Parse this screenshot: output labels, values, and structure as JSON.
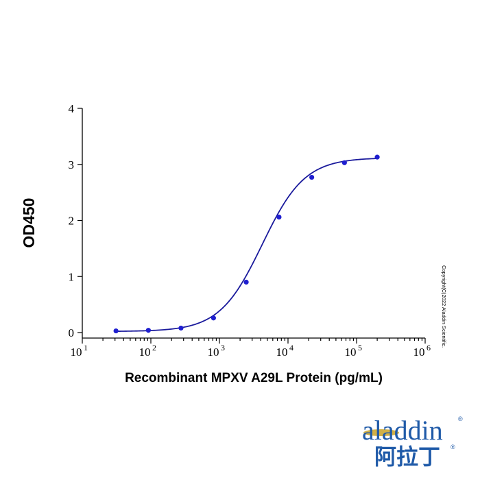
{
  "chart_data": {
    "type": "line",
    "xscale": "log",
    "xlabel": "Recombinant MPXV A29L Protein (pg/mL)",
    "ylabel": "OD450",
    "xlim": [
      10,
      1000000
    ],
    "ylim": [
      0,
      4
    ],
    "xticks": [
      {
        "value": 10,
        "base": "10",
        "exp": "1"
      },
      {
        "value": 100,
        "base": "10",
        "exp": "2"
      },
      {
        "value": 1000,
        "base": "10",
        "exp": "3"
      },
      {
        "value": 10000,
        "base": "10",
        "exp": "4"
      },
      {
        "value": 100000,
        "base": "10",
        "exp": "5"
      },
      {
        "value": 1000000,
        "base": "10",
        "exp": "6"
      }
    ],
    "yticks": [
      {
        "value": 0,
        "label": "0"
      },
      {
        "value": 1,
        "label": "1"
      },
      {
        "value": 2,
        "label": "2"
      },
      {
        "value": 3,
        "label": "3"
      },
      {
        "value": 4,
        "label": "4"
      }
    ],
    "series": [
      {
        "points": [
          {
            "x": 31,
            "y": 0.03
          },
          {
            "x": 92,
            "y": 0.04
          },
          {
            "x": 275,
            "y": 0.08
          },
          {
            "x": 820,
            "y": 0.26
          },
          {
            "x": 2460,
            "y": 0.9
          },
          {
            "x": 7400,
            "y": 2.06
          },
          {
            "x": 22200,
            "y": 2.77
          },
          {
            "x": 66600,
            "y": 3.03
          },
          {
            "x": 200000,
            "y": 3.13
          }
        ],
        "fit": {
          "model": "4PL",
          "bottom": 0.02,
          "top": 3.12,
          "ec50": 4200,
          "hill": 1.4
        },
        "color": "#1a1a9c"
      }
    ],
    "grid": false,
    "legend": "none"
  },
  "copyright": "Copyright(C)2022 Aladdin Scientific.",
  "logo": {
    "latin": "aladdin",
    "chinese": "阿拉丁",
    "registered": "®",
    "color": "#1f5aa8",
    "accent": "#c9a227"
  }
}
